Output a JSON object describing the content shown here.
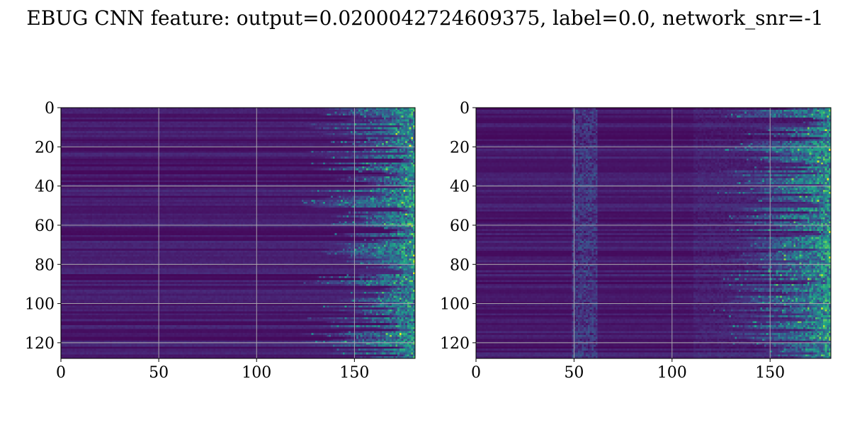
{
  "title": "EBUG CNN feature: output=0.0200042724609375, label=0.0, network_snr=-1",
  "chart_data": [
    {
      "type": "heatmap",
      "colormap": "viridis",
      "grid": true,
      "xlim": [
        0,
        181
      ],
      "ylim": [
        128,
        0
      ],
      "xticks": [
        0,
        50,
        100,
        150
      ],
      "yticks": [
        0,
        20,
        40,
        60,
        80,
        100,
        120
      ],
      "xtick_labels": [
        "0",
        "50",
        "100",
        "150"
      ],
      "ytick_labels": [
        "0",
        "20",
        "40",
        "60",
        "80",
        "100",
        "120"
      ],
      "texture": "mostly low values with bright energy concentrated at columns above ~130"
    },
    {
      "type": "heatmap",
      "colormap": "viridis",
      "grid": true,
      "xlim": [
        0,
        181
      ],
      "ylim": [
        128,
        0
      ],
      "xticks": [
        0,
        50,
        100,
        150
      ],
      "yticks": [
        0,
        20,
        40,
        60,
        80,
        100,
        120
      ],
      "xtick_labels": [
        "0",
        "50",
        "100",
        "150"
      ],
      "ytick_labels": [
        "0",
        "20",
        "40",
        "60",
        "80",
        "100",
        "120"
      ],
      "texture": "noisy band near column ~55 and bright energy at columns above ~130"
    }
  ]
}
